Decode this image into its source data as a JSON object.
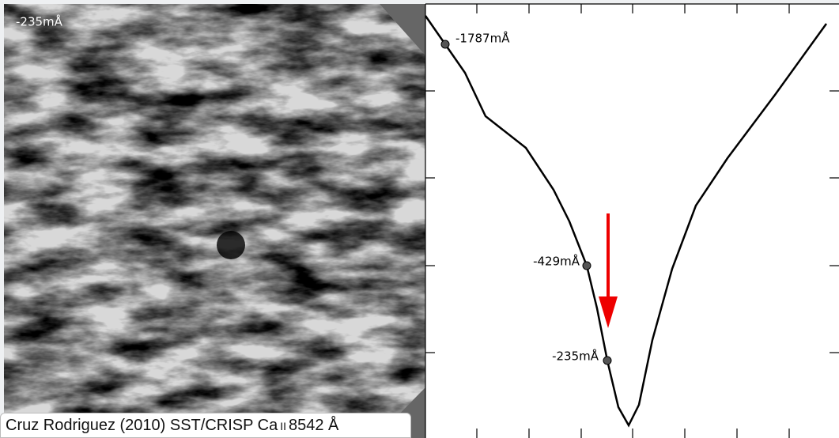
{
  "image_label": "-235mÅ",
  "caption": {
    "text": "Cruz Rodriguez (2010) SST/CRISP Ca",
    "ion": "II",
    "line": "8542 Å"
  },
  "profile": {
    "points": [
      {
        "label": "-1787mÅ"
      },
      {
        "label": "-429mÅ"
      },
      {
        "label": "-235mÅ"
      }
    ]
  }
}
